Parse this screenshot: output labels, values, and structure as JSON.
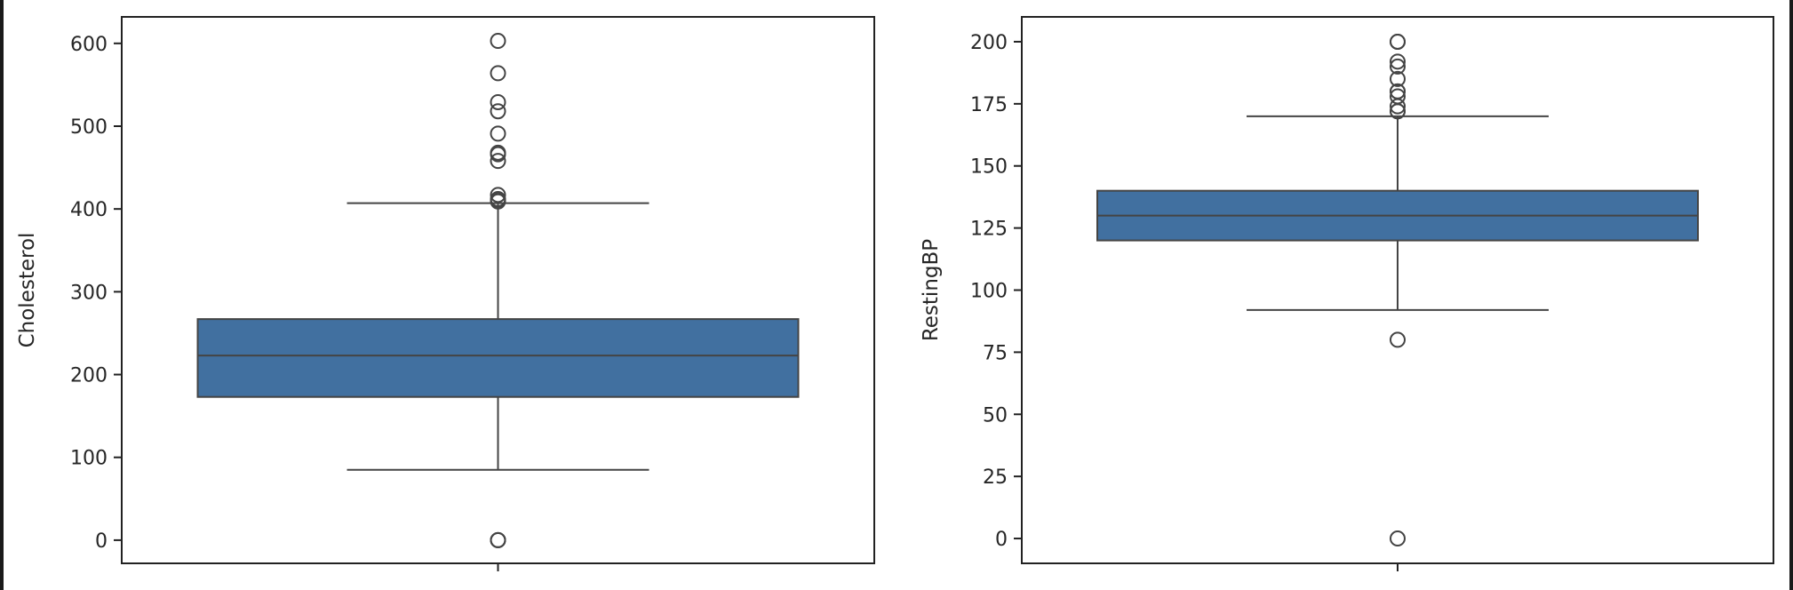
{
  "colors": {
    "box_fill": "#4170a0",
    "line": "#444444",
    "axis": "#222222",
    "frame": "#1a1a1a"
  },
  "chart_data": [
    {
      "type": "box",
      "ylabel": "Cholesterol",
      "xlabel": "",
      "ylim": [
        -28,
        632
      ],
      "yticks": [
        0,
        100,
        200,
        300,
        400,
        500,
        600
      ],
      "xticks": [
        ""
      ],
      "box": {
        "whisker_low": 85,
        "q1": 173,
        "median": 223,
        "q3": 267,
        "whisker_high": 407
      },
      "outliers": [
        603,
        564,
        529,
        518,
        491,
        468,
        466,
        458,
        417,
        412,
        411,
        409,
        0,
        0,
        0
      ]
    },
    {
      "type": "box",
      "ylabel": "RestingBP",
      "xlabel": "",
      "ylim": [
        -10,
        210
      ],
      "yticks": [
        0,
        25,
        50,
        75,
        100,
        125,
        150,
        175,
        200
      ],
      "xticks": [
        ""
      ],
      "box": {
        "whisker_low": 92,
        "q1": 120,
        "median": 130,
        "q3": 140,
        "whisker_high": 170
      },
      "outliers": [
        200,
        200,
        192,
        190,
        185,
        180,
        180,
        178,
        174,
        172,
        172,
        80,
        0
      ]
    }
  ]
}
